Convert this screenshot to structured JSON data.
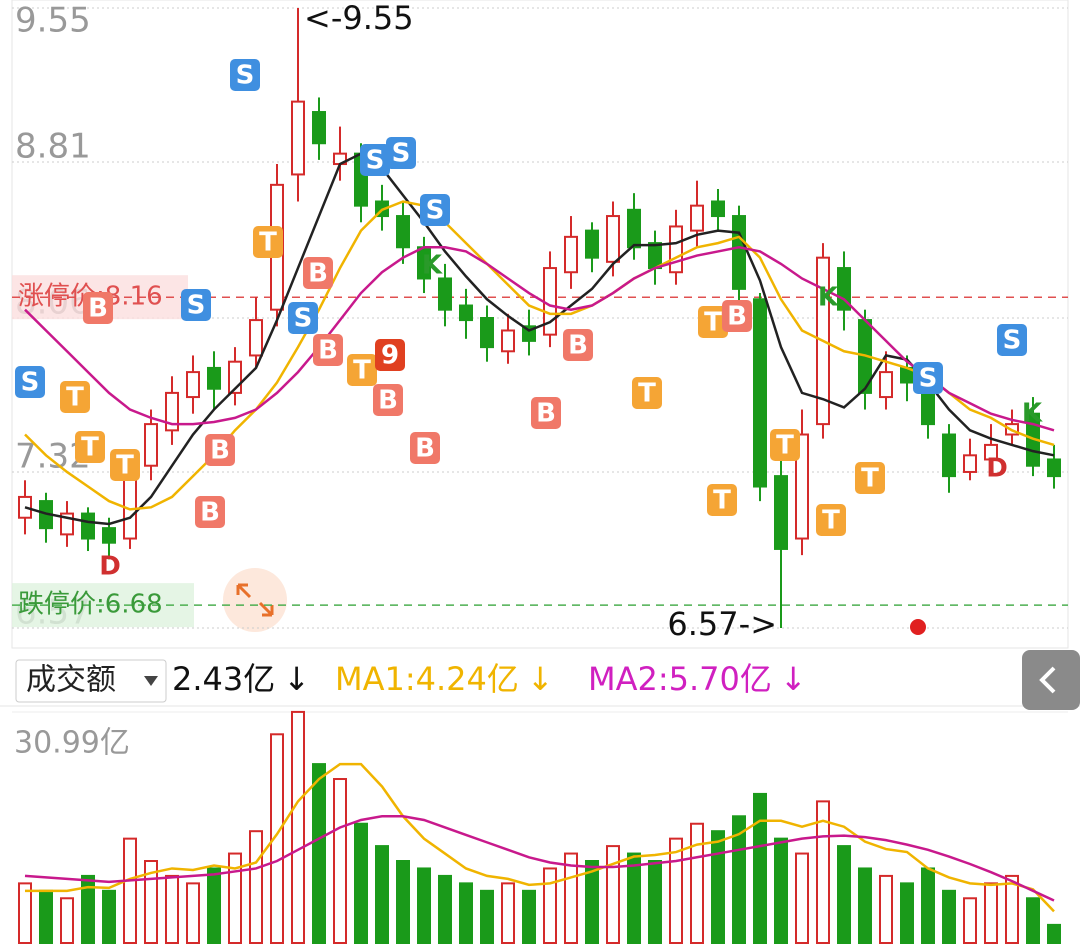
{
  "chart_data": [
    {
      "type": "candlestick",
      "open": [
        7.1,
        7.18,
        7.02,
        7.12,
        7.05,
        7.0,
        7.35,
        7.52,
        7.68,
        7.82,
        7.7,
        7.88,
        8.1,
        8.75,
        9.05,
        8.8,
        8.85,
        8.62,
        8.55,
        8.4,
        8.25,
        8.12,
        8.06,
        7.9,
        8.02,
        7.98,
        8.28,
        8.48,
        8.33,
        8.58,
        8.42,
        8.28,
        8.48,
        8.62,
        8.55,
        8.15,
        7.3,
        7.0,
        7.55,
        8.3,
        8.05,
        7.68,
        7.82,
        7.72,
        7.5,
        7.32,
        7.38,
        7.5,
        7.6,
        7.38
      ],
      "high": [
        7.28,
        7.22,
        7.18,
        7.15,
        7.1,
        7.38,
        7.62,
        7.78,
        7.88,
        7.9,
        7.92,
        8.16,
        8.8,
        9.55,
        9.12,
        8.98,
        8.9,
        8.7,
        8.62,
        8.45,
        8.32,
        8.2,
        8.12,
        8.08,
        8.1,
        8.38,
        8.55,
        8.52,
        8.62,
        8.66,
        8.48,
        8.58,
        8.72,
        8.68,
        8.6,
        8.18,
        7.4,
        7.62,
        8.42,
        8.38,
        8.1,
        7.9,
        7.88,
        7.78,
        7.55,
        7.48,
        7.55,
        7.62,
        7.68,
        7.45
      ],
      "low": [
        7.02,
        6.98,
        6.96,
        6.94,
        6.9,
        6.95,
        7.28,
        7.45,
        7.6,
        7.62,
        7.64,
        7.82,
        8.02,
        8.62,
        8.82,
        8.72,
        8.52,
        8.48,
        8.32,
        8.18,
        8.02,
        7.96,
        7.85,
        7.84,
        7.88,
        7.92,
        8.2,
        8.28,
        8.26,
        8.34,
        8.22,
        8.22,
        8.4,
        8.48,
        8.12,
        7.18,
        6.57,
        6.92,
        7.48,
        8.0,
        7.62,
        7.62,
        7.66,
        7.48,
        7.22,
        7.28,
        7.32,
        7.45,
        7.3,
        7.24
      ],
      "close": [
        7.2,
        7.05,
        7.12,
        7.0,
        6.98,
        7.3,
        7.55,
        7.7,
        7.8,
        7.72,
        7.85,
        8.05,
        8.7,
        9.1,
        8.9,
        8.85,
        8.6,
        8.55,
        8.4,
        8.25,
        8.1,
        8.05,
        7.92,
        8.0,
        7.95,
        8.3,
        8.45,
        8.35,
        8.55,
        8.4,
        8.3,
        8.5,
        8.6,
        8.55,
        8.2,
        7.25,
        6.95,
        7.5,
        8.35,
        8.1,
        7.7,
        7.8,
        7.75,
        7.55,
        7.3,
        7.4,
        7.45,
        7.55,
        7.35,
        7.3
      ],
      "up_color": "#d42a2a",
      "down_color": "#1a9a1a",
      "series": [
        {
          "color": "#222222",
          "values": [
            7.15,
            7.12,
            7.1,
            7.08,
            7.07,
            7.1,
            7.2,
            7.35,
            7.5,
            7.62,
            7.72,
            7.82,
            8.05,
            8.3,
            8.55,
            8.8,
            8.85,
            8.78,
            8.65,
            8.52,
            8.38,
            8.26,
            8.15,
            8.07,
            8.0,
            8.04,
            8.12,
            8.2,
            8.32,
            8.41,
            8.41,
            8.42,
            8.46,
            8.48,
            8.47,
            8.24,
            7.92,
            7.7,
            7.67,
            7.63,
            7.72,
            7.88,
            7.86,
            7.75,
            7.62,
            7.52,
            7.48,
            7.45,
            7.42,
            7.4
          ]
        },
        {
          "color": "#f0b400",
          "values": [
            7.5,
            7.4,
            7.32,
            7.25,
            7.18,
            7.14,
            7.15,
            7.2,
            7.3,
            7.4,
            7.52,
            7.62,
            7.75,
            7.92,
            8.1,
            8.3,
            8.48,
            8.58,
            8.62,
            8.6,
            8.52,
            8.42,
            8.32,
            8.22,
            8.12,
            8.08,
            8.08,
            8.12,
            8.18,
            8.25,
            8.3,
            8.35,
            8.4,
            8.42,
            8.45,
            8.35,
            8.15,
            8.0,
            7.95,
            7.9,
            7.88,
            7.85,
            7.82,
            7.78,
            7.7,
            7.62,
            7.58,
            7.52,
            7.48,
            7.45
          ]
        },
        {
          "color": "#c8198c",
          "values": [
            8.1,
            8.0,
            7.9,
            7.8,
            7.7,
            7.62,
            7.58,
            7.55,
            7.55,
            7.56,
            7.58,
            7.62,
            7.7,
            7.8,
            7.92,
            8.05,
            8.18,
            8.28,
            8.35,
            8.4,
            8.4,
            8.38,
            8.32,
            8.25,
            8.18,
            8.12,
            8.1,
            8.12,
            8.18,
            8.25,
            8.3,
            8.33,
            8.36,
            8.38,
            8.4,
            8.38,
            8.32,
            8.25,
            8.2,
            8.15,
            8.05,
            7.95,
            7.85,
            7.78,
            7.7,
            7.65,
            7.6,
            7.57,
            7.55,
            7.52
          ]
        }
      ],
      "ylim": [
        6.57,
        9.55
      ],
      "yticks": [
        9.55,
        8.81,
        8.06,
        7.32,
        6.57
      ],
      "grid": true,
      "limit_up": {
        "label": "涨停价:8.16",
        "value": 8.16
      },
      "limit_down": {
        "label": "跌停价:6.68",
        "value": 6.68
      },
      "annotations": {
        "max": "<-9.55",
        "min": "6.57->"
      },
      "signals": [
        "S",
        "T",
        "T",
        "B",
        "D",
        "T",
        "B",
        "S",
        "B",
        "S",
        "T",
        "S",
        "S",
        "S",
        "B",
        "B",
        "T",
        "9",
        "B",
        "S",
        "K",
        "B",
        "B",
        "B",
        "T",
        "T",
        "B",
        "T",
        "T",
        "K",
        "T",
        "T",
        "S",
        "S",
        "K",
        "D"
      ]
    },
    {
      "type": "volume",
      "header": {
        "label": "成交额",
        "value": "2.43亿",
        "ma1": "MA1:4.24亿",
        "ma2": "MA2:5.70亿",
        "arrow": "↓"
      },
      "values": [
        8,
        7,
        6,
        9,
        7,
        14,
        11,
        9,
        8,
        10,
        12,
        15,
        28,
        31,
        24,
        22,
        16,
        13,
        11,
        10,
        9,
        8,
        7,
        8,
        7,
        10,
        12,
        11,
        13,
        12,
        11,
        14,
        16,
        15,
        17,
        20,
        14,
        12,
        19,
        13,
        10,
        9,
        8,
        10,
        7,
        6,
        8,
        9,
        6,
        2.43
      ],
      "series": [
        {
          "color": "#f0b400",
          "values": [
            7,
            7,
            7,
            7.5,
            7.4,
            8.6,
            9.4,
            10,
            9.8,
            10.4,
            10,
            10.8,
            14.6,
            19,
            22,
            24,
            24,
            21,
            17,
            14,
            12,
            10,
            9,
            8.6,
            7.8,
            8,
            8.8,
            9.6,
            10.6,
            11.6,
            11.8,
            12.2,
            13.2,
            13.6,
            14.6,
            16.4,
            16.4,
            15.6,
            16.4,
            15.6,
            13.6,
            12.6,
            12.2,
            10,
            8.8,
            8,
            7.8,
            8,
            7.2,
            4.24
          ]
        },
        {
          "color": "#c8198c",
          "values": [
            9,
            8.8,
            8.6,
            8.4,
            8.2,
            8.4,
            8.6,
            8.8,
            9,
            9.2,
            9.6,
            10,
            11,
            12.5,
            14,
            15.5,
            16.5,
            17,
            17,
            16.5,
            15.5,
            14.5,
            13.5,
            12.5,
            11.5,
            10.8,
            10.4,
            10.2,
            10.2,
            10.4,
            10.7,
            11,
            11.5,
            12,
            12.5,
            13,
            13.5,
            14,
            14.3,
            14.4,
            14.2,
            13.8,
            13.2,
            12.5,
            11.6,
            10.6,
            9.5,
            8.3,
            7,
            5.7
          ]
        }
      ],
      "ylim": [
        0,
        30.99
      ],
      "yticks": [
        {
          "value": 30.99,
          "label": "30.99亿"
        }
      ]
    }
  ]
}
